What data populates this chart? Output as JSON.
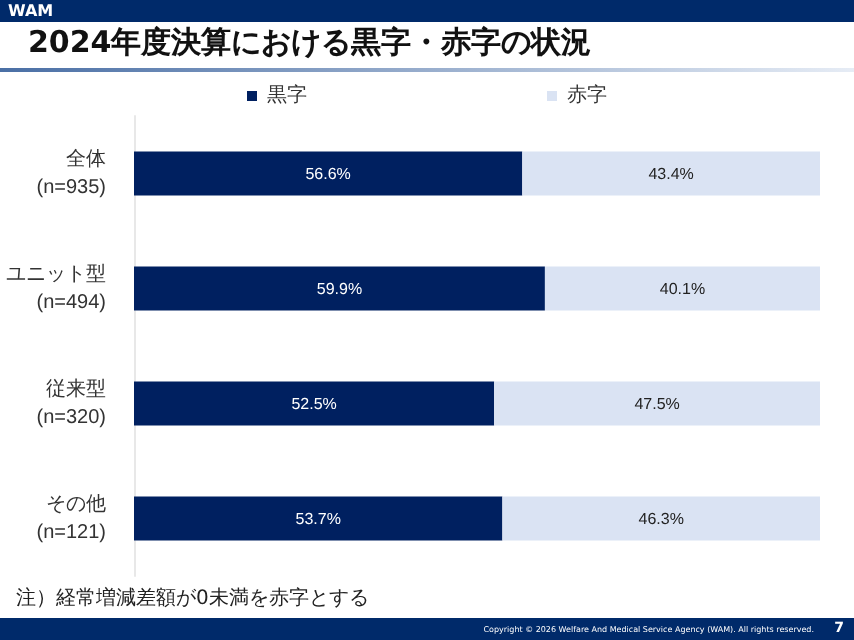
{
  "chart_data": {
    "type": "bar",
    "orientation": "horizontal",
    "stacked": true,
    "title": "2024年度決算における黒字・赤字の状況",
    "categories": [
      "全体\n(n=935)",
      "ユニット型\n(n=494)",
      "従来型\n(n=320)",
      "その他\n(n=121)"
    ],
    "series": [
      {
        "name": "黒字",
        "color": "#002060",
        "values": [
          56.6,
          59.9,
          52.5,
          53.7
        ],
        "value_labels": [
          "56.6%",
          "59.9%",
          "52.5%",
          "53.7%"
        ]
      },
      {
        "name": "赤字",
        "color": "#dae3f3",
        "values": [
          43.4,
          40.1,
          47.5,
          46.3
        ],
        "value_labels": [
          "43.4%",
          "40.1%",
          "47.5%",
          "46.3%"
        ]
      }
    ],
    "legend": "top",
    "grid": false,
    "tick_labels": "y",
    "annotations": [
      "WAM",
      "注）経常増減差額が0未満を赤字とする",
      "Copyright © 2026 Welfare And Medical Service Agency (WAM). All rights reserved.",
      "7"
    ]
  }
}
